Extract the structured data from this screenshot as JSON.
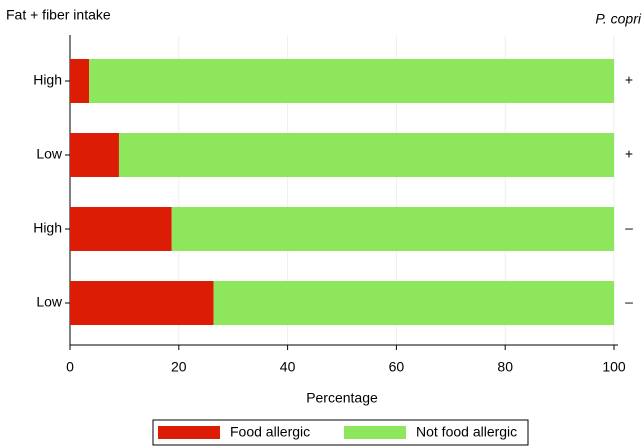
{
  "chart_data": {
    "type": "stacked-barh",
    "y_label": "Fat + fiber intake",
    "x_label": "Percentage",
    "group_title": "P. copri",
    "categories": [
      "High",
      "Low",
      "High",
      "Low"
    ],
    "group_labels": [
      "+",
      "+",
      "–",
      "–"
    ],
    "series": [
      {
        "name": "Food allergic",
        "color": "#dd1c05",
        "values": [
          3.5,
          9,
          18.7,
          26.4
        ]
      },
      {
        "name": "Not food allergic",
        "color": "#8ee65c",
        "values": [
          96.5,
          91,
          81.3,
          73.6
        ]
      }
    ],
    "xlim": [
      0,
      100
    ],
    "xticks": [
      0,
      20,
      40,
      60,
      80,
      100
    ],
    "grid": true,
    "legend": "bottom"
  }
}
